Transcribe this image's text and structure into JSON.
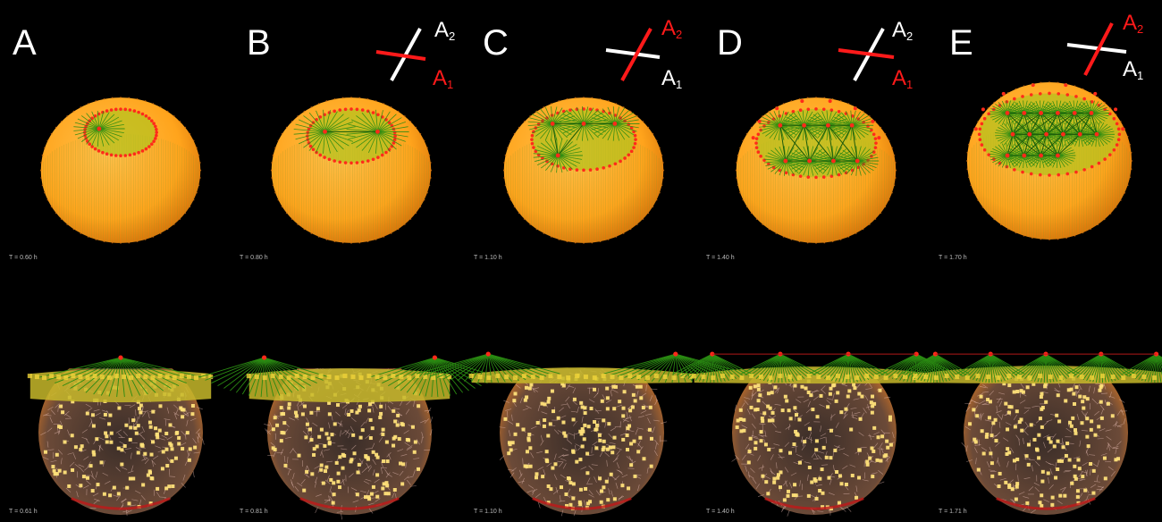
{
  "colors": {
    "background": "#000000",
    "yolk": "#ffa41c",
    "cap": "#2a8a12",
    "marker": "#ff2a1a",
    "nucleus": "#ffe27a",
    "axis_red": "#ff1a1a",
    "axis_white": "#ffffff"
  },
  "axis_labels": {
    "a1_letter": "A",
    "a1_sub": "1",
    "a2_letter": "A",
    "a2_sub": "2"
  },
  "panels": [
    {
      "letter": "A",
      "time_top": "T = 0.60 h",
      "time_bottom": "T = 0.61 h",
      "axes_orientation": "none",
      "cap_clusters": 1,
      "bottom_clusters": 1
    },
    {
      "letter": "B",
      "time_top": "T = 0.80 h",
      "time_bottom": "T = 0.81 h",
      "axes_orientation": "A1-red-lower",
      "cap_clusters": 2,
      "bottom_clusters": 2
    },
    {
      "letter": "C",
      "time_top": "T = 1.10 h",
      "time_bottom": "T = 1.10 h",
      "axes_orientation": "A2-red-upper",
      "cap_clusters": 4,
      "bottom_clusters": 2
    },
    {
      "letter": "D",
      "time_top": "T = 1.40 h",
      "time_bottom": "T = 1.40 h",
      "axes_orientation": "A1-red-lower",
      "cap_clusters": 8,
      "bottom_clusters": 4
    },
    {
      "letter": "E",
      "time_top": "T = 1.70 h",
      "time_bottom": "T = 1.71 h",
      "axes_orientation": "A2-red-upper",
      "cap_clusters": 16,
      "bottom_clusters": 5
    }
  ]
}
